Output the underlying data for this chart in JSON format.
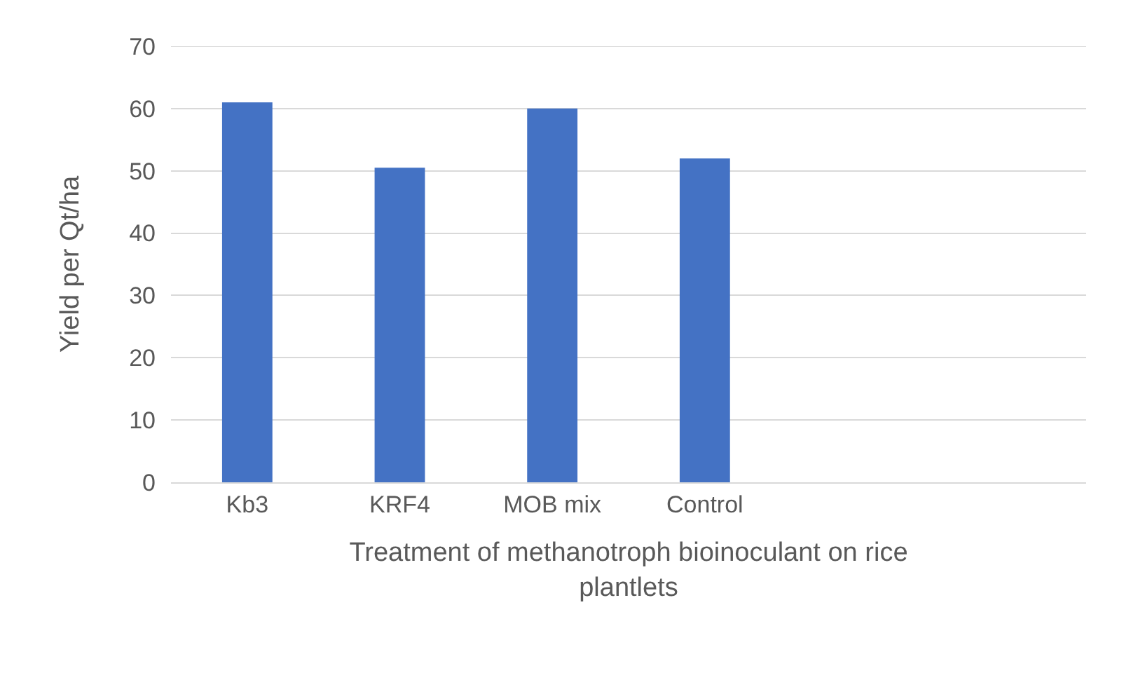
{
  "chart_data": {
    "type": "bar",
    "xlabel": "Treatment of methanotroph bioinoculant on rice plantlets",
    "ylabel": "Yield per Qt/ha",
    "categories": [
      "Kb3",
      "KRF4",
      "MOB mix",
      "Control",
      null,
      null
    ],
    "values": [
      61,
      50.5,
      60,
      52,
      null,
      null
    ],
    "color": "#4472c4",
    "ylim": [
      0,
      70
    ],
    "yticks": [
      0,
      10,
      20,
      30,
      40,
      50,
      60,
      70
    ],
    "grid": "y"
  }
}
